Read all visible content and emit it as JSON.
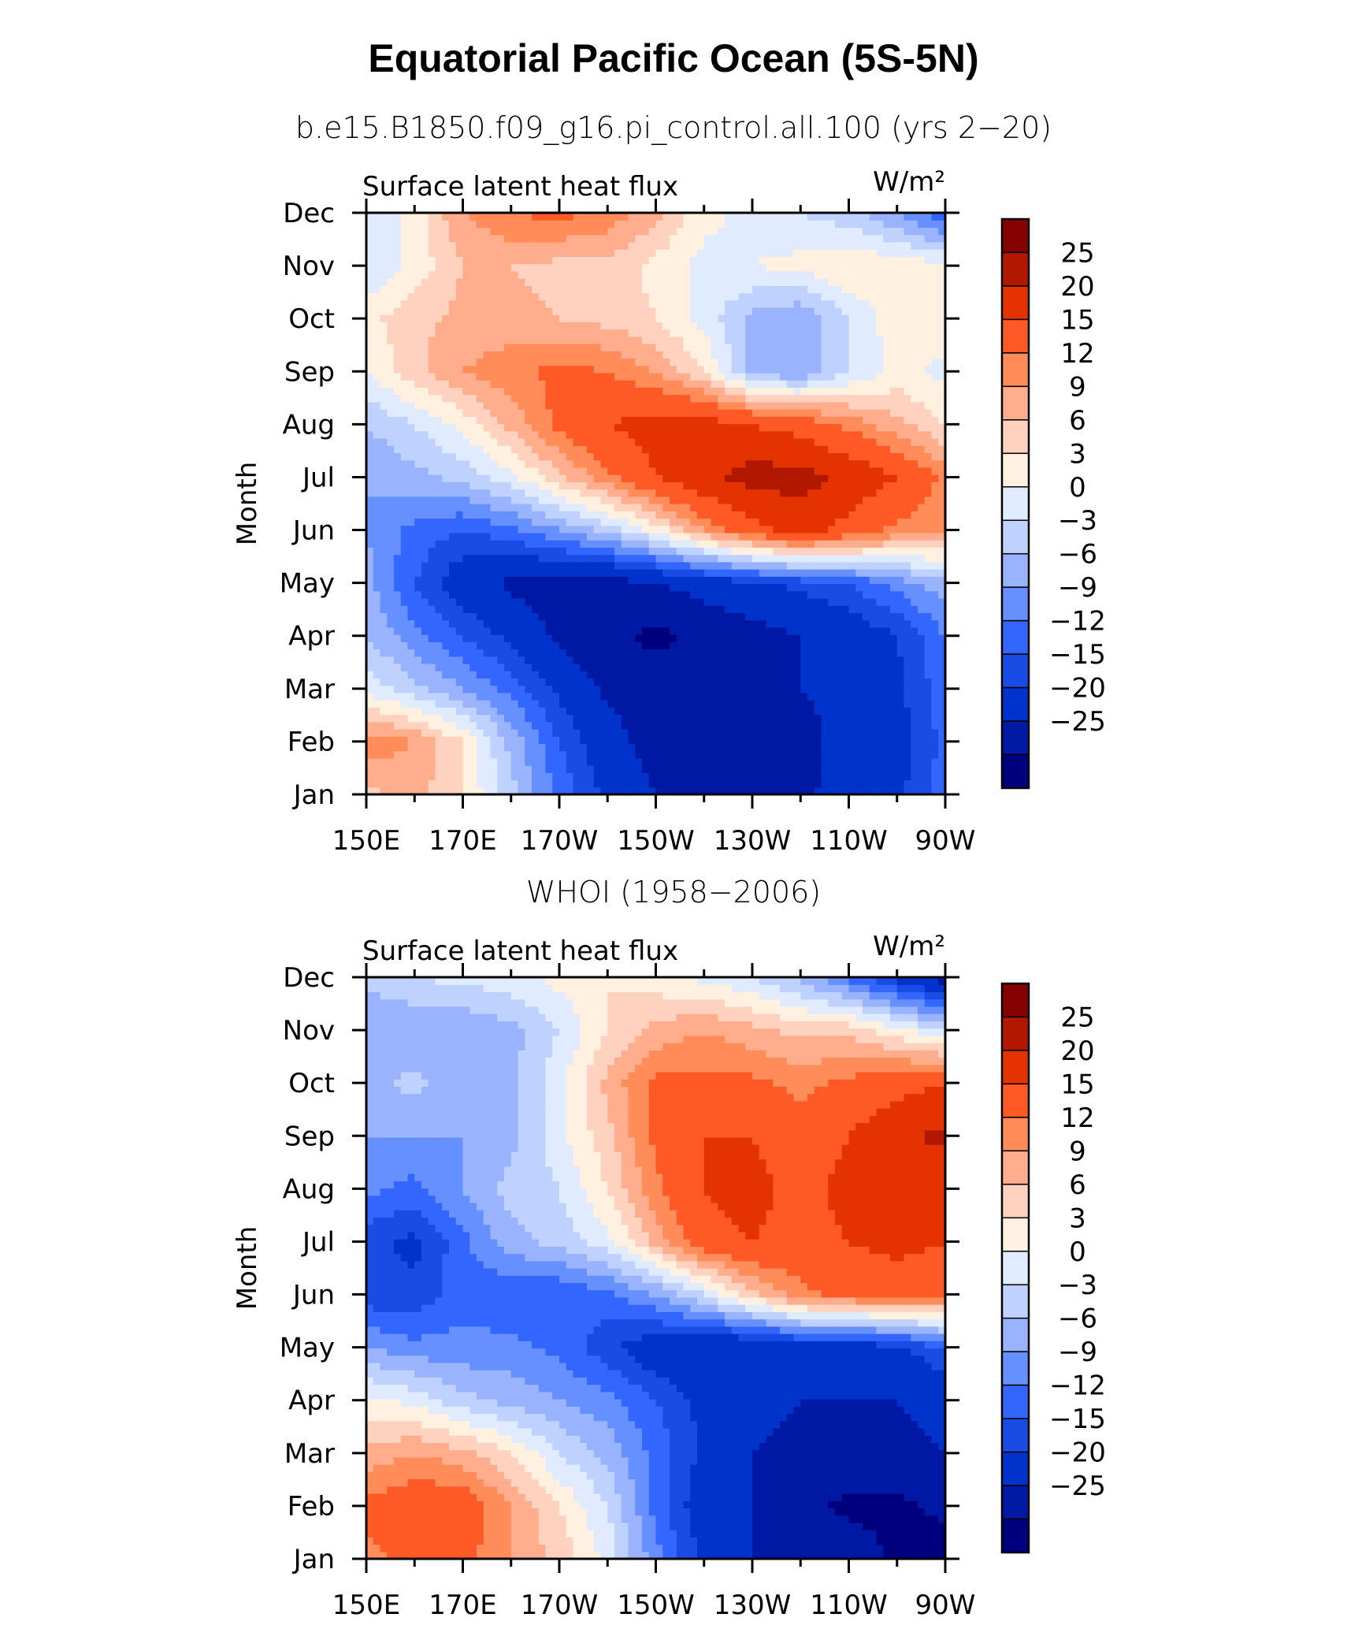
{
  "title": "Equatorial Pacific Ocean (5S-5N)",
  "colors": [
    "#00007f",
    "#0019a5",
    "#0033cc",
    "#194ce5",
    "#3366ff",
    "#6690ff",
    "#99b3ff",
    "#bfd2ff",
    "#e0ebff",
    "#fff0e0",
    "#ffd2bf",
    "#ffad8c",
    "#ff8c59",
    "#ff5a26",
    "#e53300",
    "#b21800",
    "#850000"
  ],
  "chart_data": [
    {
      "type": "heatmap",
      "title": "b.e15.B1850.f09_g16.pi_control.all.100 (yrs 2−20)",
      "left_label": "Surface latent heat flux",
      "right_label": "W/m²",
      "xlabel": "",
      "ylabel": "Month",
      "x_ticks": [
        "150E",
        "170E",
        "170W",
        "150W",
        "130W",
        "110W",
        "90W"
      ],
      "x_values": [
        150,
        170,
        190,
        210,
        230,
        250,
        270
      ],
      "y_ticks": [
        "Jan",
        "Feb",
        "Mar",
        "Apr",
        "May",
        "Jun",
        "Jul",
        "Aug",
        "Sep",
        "Oct",
        "Nov",
        "Dec"
      ],
      "xlim": [
        150,
        270
      ],
      "ylim": [
        1,
        12
      ],
      "levels": [
        -25,
        -20,
        -15,
        -12,
        -9,
        -6,
        -3,
        0,
        3,
        6,
        9,
        12,
        15,
        20,
        25
      ],
      "level_labels": [
        "25",
        "20",
        "15",
        "12",
        "9",
        "6",
        "3",
        "0",
        "−3",
        "−6",
        "−9",
        "−12",
        "−15",
        "−20",
        "−25"
      ],
      "z": [
        [
          8,
          10,
          6,
          -2,
          -10,
          -16,
          -20,
          -22,
          -22,
          -21,
          -18,
          -16,
          -10
        ],
        [
          14,
          12,
          6,
          -4,
          -12,
          -18,
          -22,
          -23,
          -23,
          -22,
          -18,
          -17,
          -11
        ],
        [
          2,
          -2,
          -6,
          -10,
          -16,
          -21,
          -23,
          -23,
          -22,
          -20,
          -18,
          -16,
          -10
        ],
        [
          -3,
          -8,
          -12,
          -16,
          -21,
          -24,
          -26,
          -24,
          -22,
          -20,
          -18,
          -15,
          -9
        ],
        [
          -5,
          -12,
          -18,
          -21,
          -22,
          -22,
          -20,
          -18,
          -16,
          -14,
          -12,
          -8,
          -4
        ],
        [
          -6,
          -10,
          -12,
          -10,
          -6,
          -2,
          4,
          12,
          18,
          22,
          18,
          14,
          12
        ],
        [
          -6,
          -4,
          -2,
          2,
          8,
          14,
          20,
          24,
          27,
          27,
          24,
          20,
          14
        ],
        [
          -3,
          0,
          4,
          10,
          16,
          20,
          22,
          22,
          20,
          18,
          14,
          10,
          6
        ],
        [
          3,
          8,
          12,
          14,
          16,
          15,
          12,
          6,
          -4,
          -6,
          0,
          4,
          2
        ],
        [
          5,
          8,
          10,
          10,
          9,
          8,
          6,
          2,
          -4,
          -6,
          0,
          5,
          5
        ],
        [
          0,
          4,
          9,
          9,
          8,
          8,
          5,
          2,
          3,
          4,
          6,
          5,
          4
        ],
        [
          0,
          4,
          12,
          15,
          16,
          14,
          10,
          4,
          2,
          0,
          -2,
          -6,
          -12
        ]
      ]
    },
    {
      "type": "heatmap",
      "title": "WHOI (1958−2006)",
      "left_label": "Surface latent heat flux",
      "right_label": "W/m²",
      "xlabel": "",
      "ylabel": "Month",
      "x_ticks": [
        "150E",
        "170E",
        "170W",
        "150W",
        "130W",
        "110W",
        "90W"
      ],
      "x_values": [
        150,
        170,
        190,
        210,
        230,
        250,
        270
      ],
      "y_ticks": [
        "Jan",
        "Feb",
        "Mar",
        "Apr",
        "May",
        "Jun",
        "Jul",
        "Aug",
        "Sep",
        "Oct",
        "Nov",
        "Dec"
      ],
      "xlim": [
        150,
        270
      ],
      "ylim": [
        1,
        12
      ],
      "levels": [
        -25,
        -20,
        -15,
        -12,
        -9,
        -6,
        -3,
        0,
        3,
        6,
        9,
        12,
        15,
        20,
        25
      ],
      "level_labels": [
        "25",
        "20",
        "15",
        "12",
        "9",
        "6",
        "3",
        "0",
        "−3",
        "−6",
        "−9",
        "−12",
        "−15",
        "−20",
        "−25"
      ],
      "z": [
        [
          14,
          16,
          16,
          12,
          8,
          2,
          -8,
          -16,
          -20,
          -20,
          -22,
          -26,
          -27
        ],
        [
          16,
          18,
          18,
          12,
          6,
          0,
          -10,
          -18,
          -20,
          -24,
          -26,
          -26,
          -24
        ],
        [
          10,
          12,
          10,
          6,
          0,
          -4,
          -10,
          -16,
          -20,
          -22,
          -22,
          -22,
          -20
        ],
        [
          4,
          2,
          -2,
          -4,
          -6,
          -8,
          -12,
          -16,
          -18,
          -20,
          -20,
          -20,
          -18
        ],
        [
          -6,
          -8,
          -8,
          -8,
          -10,
          -14,
          -18,
          -20,
          -20,
          -18,
          -18,
          -16,
          -12
        ],
        [
          -14,
          -14,
          -10,
          -12,
          -12,
          -10,
          -6,
          0,
          8,
          14,
          16,
          16,
          16
        ],
        [
          -14,
          -16,
          -10,
          -4,
          -2,
          2,
          10,
          18,
          20,
          18,
          20,
          22,
          20
        ],
        [
          -8,
          -10,
          -6,
          -2,
          0,
          6,
          14,
          20,
          22,
          18,
          22,
          24,
          22
        ],
        [
          -6,
          -6,
          -6,
          -4,
          2,
          8,
          16,
          20,
          20,
          16,
          20,
          24,
          26
        ],
        [
          -4,
          -2,
          -6,
          -4,
          2,
          10,
          16,
          16,
          16,
          14,
          16,
          18,
          20
        ],
        [
          -6,
          -6,
          -6,
          -4,
          0,
          6,
          10,
          12,
          10,
          8,
          8,
          4,
          0
        ],
        [
          -2,
          0,
          1,
          2,
          4,
          6,
          4,
          2,
          0,
          -4,
          -10,
          -16,
          -22
        ]
      ]
    }
  ]
}
